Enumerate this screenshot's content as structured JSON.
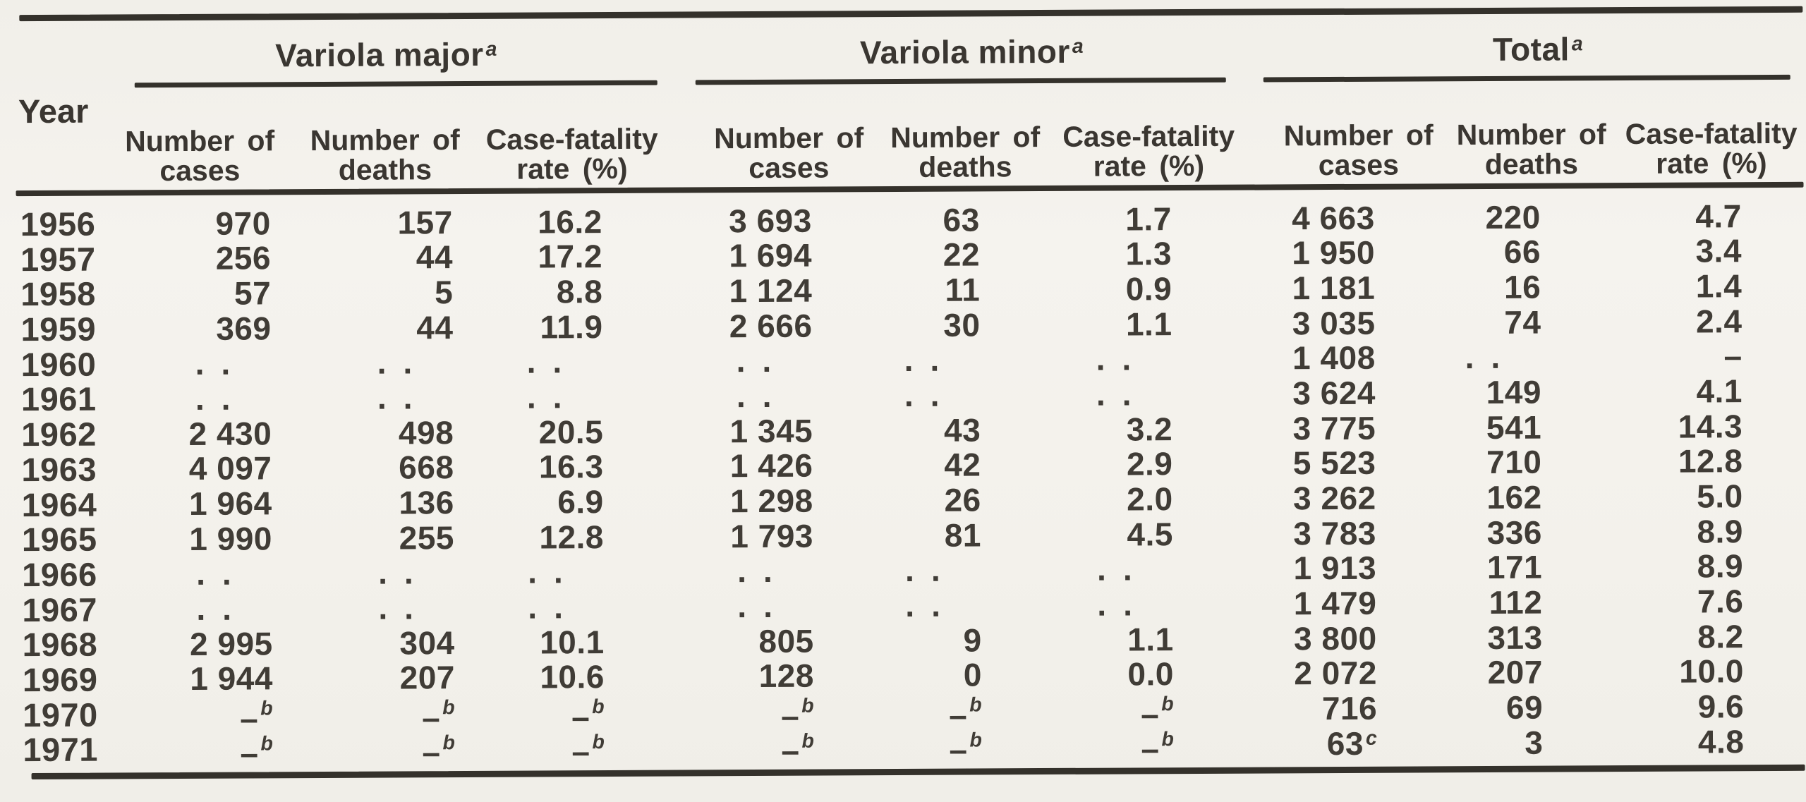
{
  "page": {
    "paper_color": "#f3f1eb",
    "ink_color": "#3a3631"
  },
  "table": {
    "year_label": "Year",
    "groups": [
      {
        "label": "Variola major",
        "sup": "a"
      },
      {
        "label": "Variola minor",
        "sup": "a"
      },
      {
        "label": "Total",
        "sup": "a"
      }
    ],
    "columns": [
      {
        "line1": "Number of",
        "line2": "cases"
      },
      {
        "line1": "Number of",
        "line2": "deaths"
      },
      {
        "line1": "Case-fatality",
        "line2": "rate (%)"
      }
    ],
    "not_available_marker": "..",
    "footnote_dash_marker": "–^b",
    "rows": [
      {
        "year": "1956",
        "variola_major": [
          "970",
          "157",
          "16.2"
        ],
        "variola_minor": [
          "3 693",
          "63",
          "1.7"
        ],
        "total": [
          "4 663",
          "220",
          "4.7"
        ]
      },
      {
        "year": "1957",
        "variola_major": [
          "256",
          "44",
          "17.2"
        ],
        "variola_minor": [
          "1 694",
          "22",
          "1.3"
        ],
        "total": [
          "1 950",
          "66",
          "3.4"
        ]
      },
      {
        "year": "1958",
        "variola_major": [
          "57",
          "5",
          "8.8"
        ],
        "variola_minor": [
          "1 124",
          "11",
          "0.9"
        ],
        "total": [
          "1 181",
          "16",
          "1.4"
        ]
      },
      {
        "year": "1959",
        "variola_major": [
          "369",
          "44",
          "11.9"
        ],
        "variola_minor": [
          "2 666",
          "30",
          "1.1"
        ],
        "total": [
          "3 035",
          "74",
          "2.4"
        ]
      },
      {
        "year": "1960",
        "variola_major": [
          "..",
          "..",
          ".."
        ],
        "variola_minor": [
          "..",
          "..",
          ".."
        ],
        "total": [
          "1 408",
          "..",
          "–"
        ]
      },
      {
        "year": "1961",
        "variola_major": [
          "..",
          "..",
          ".."
        ],
        "variola_minor": [
          "..",
          "..",
          ".."
        ],
        "total": [
          "3 624",
          "149",
          "4.1"
        ]
      },
      {
        "year": "1962",
        "variola_major": [
          "2 430",
          "498",
          "20.5"
        ],
        "variola_minor": [
          "1 345",
          "43",
          "3.2"
        ],
        "total": [
          "3 775",
          "541",
          "14.3"
        ]
      },
      {
        "year": "1963",
        "variola_major": [
          "4 097",
          "668",
          "16.3"
        ],
        "variola_minor": [
          "1 426",
          "42",
          "2.9"
        ],
        "total": [
          "5 523",
          "710",
          "12.8"
        ]
      },
      {
        "year": "1964",
        "variola_major": [
          "1 964",
          "136",
          "6.9"
        ],
        "variola_minor": [
          "1 298",
          "26",
          "2.0"
        ],
        "total": [
          "3 262",
          "162",
          "5.0"
        ]
      },
      {
        "year": "1965",
        "variola_major": [
          "1 990",
          "255",
          "12.8"
        ],
        "variola_minor": [
          "1 793",
          "81",
          "4.5"
        ],
        "total": [
          "3 783",
          "336",
          "8.9"
        ]
      },
      {
        "year": "1966",
        "variola_major": [
          "..",
          "..",
          ".."
        ],
        "variola_minor": [
          "..",
          "..",
          ".."
        ],
        "total": [
          "1 913",
          "171",
          "8.9"
        ]
      },
      {
        "year": "1967",
        "variola_major": [
          "..",
          "..",
          ".."
        ],
        "variola_minor": [
          "..",
          "..",
          ".."
        ],
        "total": [
          "1 479",
          "112",
          "7.6"
        ]
      },
      {
        "year": "1968",
        "variola_major": [
          "2 995",
          "304",
          "10.1"
        ],
        "variola_minor": [
          "805",
          "9",
          "1.1"
        ],
        "total": [
          "3 800",
          "313",
          "8.2"
        ]
      },
      {
        "year": "1969",
        "variola_major": [
          "1 944",
          "207",
          "10.6"
        ],
        "variola_minor": [
          "128",
          "0",
          "0.0"
        ],
        "total": [
          "2 072",
          "207",
          "10.0"
        ]
      },
      {
        "year": "1970",
        "variola_major": [
          "–^b",
          "–^b",
          "–^b"
        ],
        "variola_minor": [
          "–^b",
          "–^b",
          "–^b"
        ],
        "total": [
          "716",
          "69",
          "9.6"
        ]
      },
      {
        "year": "1971",
        "variola_major": [
          "–^b",
          "–^b",
          "–^b"
        ],
        "variola_minor": [
          "–^b",
          "–^b",
          "–^b"
        ],
        "total": [
          "63^c",
          "3",
          "4.8"
        ]
      }
    ]
  }
}
